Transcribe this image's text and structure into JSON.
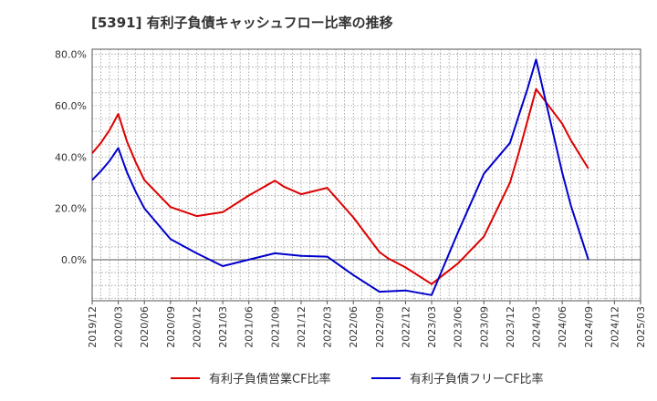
{
  "chart_data": {
    "type": "line",
    "title": "[5391]  有利子負債キャッシュフロー比率の推移",
    "xlabel": "",
    "ylabel": "",
    "ylim": [
      -16,
      82
    ],
    "y_ticks": [
      0,
      20,
      40,
      60,
      80
    ],
    "y_tick_labels": [
      "0.0%",
      "20.0%",
      "40.0%",
      "60.0%",
      "80.0%"
    ],
    "x_tick_labels": [
      "2019/12",
      "2020/03",
      "2020/06",
      "2020/09",
      "2020/12",
      "2021/03",
      "2021/06",
      "2021/09",
      "2021/12",
      "2022/03",
      "2022/06",
      "2022/09",
      "2022/12",
      "2023/03",
      "2023/06",
      "2023/09",
      "2023/12",
      "2024/03",
      "2024/06",
      "2024/09",
      "2024/12",
      "2025/03"
    ],
    "grid": true,
    "legend_position": "bottom",
    "series": [
      {
        "name": "有利子負債営業CF比率",
        "color": "#dd0000",
        "x": [
          "2019/12",
          "2020/01",
          "2020/02",
          "2020/03",
          "2020/04",
          "2020/05",
          "2020/06",
          "2020/09",
          "2020/12",
          "2021/03",
          "2021/06",
          "2021/09",
          "2021/10",
          "2021/12",
          "2022/03",
          "2022/06",
          "2022/09",
          "2022/10",
          "2022/12",
          "2023/03",
          "2023/06",
          "2023/09",
          "2023/12",
          "2024/01",
          "2024/02",
          "2024/03",
          "2024/06",
          "2024/07",
          "2024/09"
        ],
        "values": [
          41.5,
          45.5,
          50.5,
          56.8,
          46.0,
          38.0,
          31.0,
          20.5,
          17.0,
          18.5,
          25.0,
          30.8,
          28.5,
          25.5,
          28.0,
          16.5,
          3.0,
          0.5,
          -3.0,
          -9.5,
          -1.5,
          9.0,
          30.0,
          41.5,
          54.0,
          66.5,
          53.0,
          46.5,
          35.5
        ]
      },
      {
        "name": "有利子負債フリーCF比率",
        "color": "#0000cc",
        "x": [
          "2019/12",
          "2020/01",
          "2020/02",
          "2020/03",
          "2020/04",
          "2020/05",
          "2020/06",
          "2020/09",
          "2020/12",
          "2021/03",
          "2021/06",
          "2021/09",
          "2021/12",
          "2022/03",
          "2022/06",
          "2022/09",
          "2022/12",
          "2023/03",
          "2023/06",
          "2023/09",
          "2023/12",
          "2024/01",
          "2024/02",
          "2024/03",
          "2024/06",
          "2024/07",
          "2024/09"
        ],
        "values": [
          31.0,
          34.5,
          38.5,
          43.5,
          34.0,
          26.5,
          20.0,
          8.0,
          2.5,
          -2.5,
          0.0,
          2.5,
          1.5,
          1.2,
          -6.0,
          -12.5,
          -12.0,
          -13.8,
          10.5,
          33.5,
          45.5,
          56.0,
          66.5,
          78.0,
          34.0,
          21.0,
          0.0
        ]
      }
    ]
  }
}
